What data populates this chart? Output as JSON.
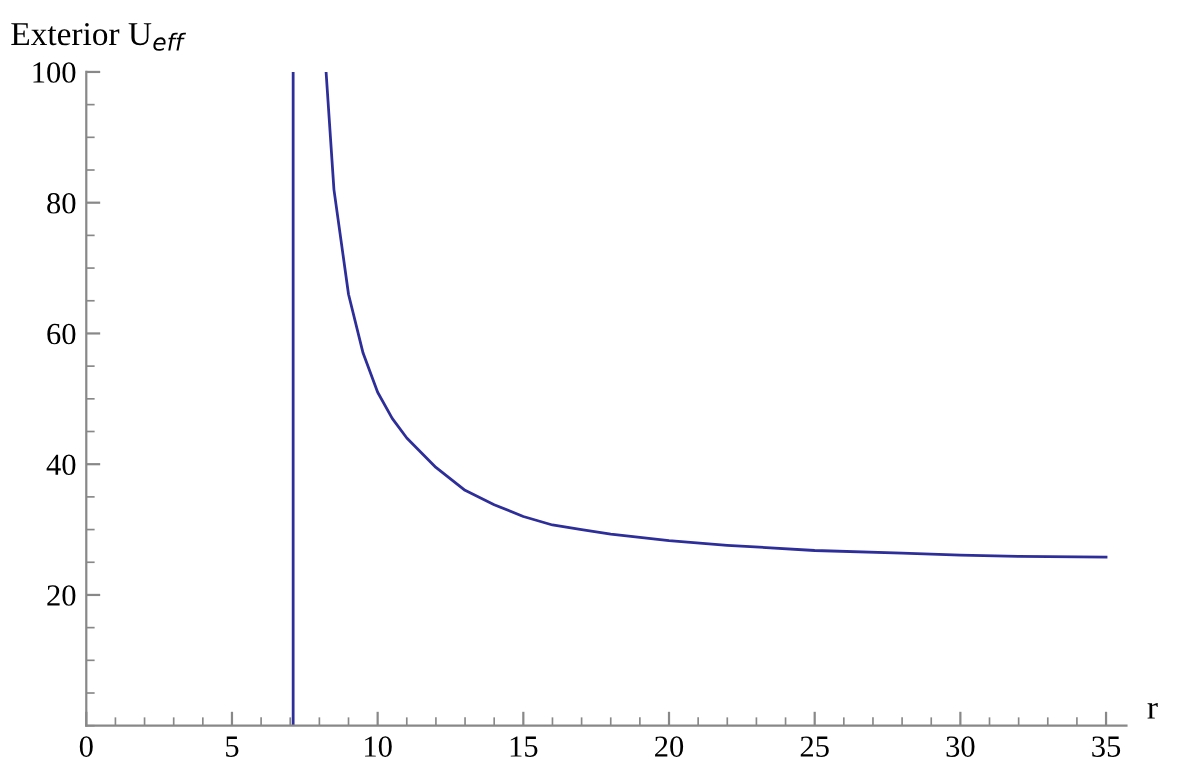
{
  "chart_data": {
    "type": "line",
    "xlabel": "r",
    "ylabel": "Exterior U$_{eff}$",
    "xlim": [
      0,
      35.7
    ],
    "ylim": [
      0,
      100
    ],
    "xticks": [
      0,
      5,
      10,
      15,
      20,
      25,
      30,
      35
    ],
    "yticks": [
      20,
      40,
      60,
      80,
      100
    ],
    "grid": false,
    "legend": false,
    "marker": "none",
    "line_style": "solid",
    "series": [
      {
        "color": "#2e2e9a",
        "x": [
          7.1,
          7.1
        ],
        "values": [
          0,
          100
        ]
      },
      {
        "color": "#2e2e9a",
        "x": [
          8.23,
          8.5,
          9,
          9.5,
          10,
          10.5,
          11,
          12,
          13,
          14,
          15,
          16,
          17,
          18,
          20,
          22,
          25,
          28,
          30,
          32,
          35
        ],
        "values": [
          100,
          82,
          66,
          57,
          51,
          47,
          44,
          39.5,
          36,
          33.8,
          32,
          30.7,
          30,
          29.3,
          28.3,
          27.6,
          26.8,
          26.4,
          26.1,
          25.9,
          25.8
        ]
      }
    ]
  }
}
